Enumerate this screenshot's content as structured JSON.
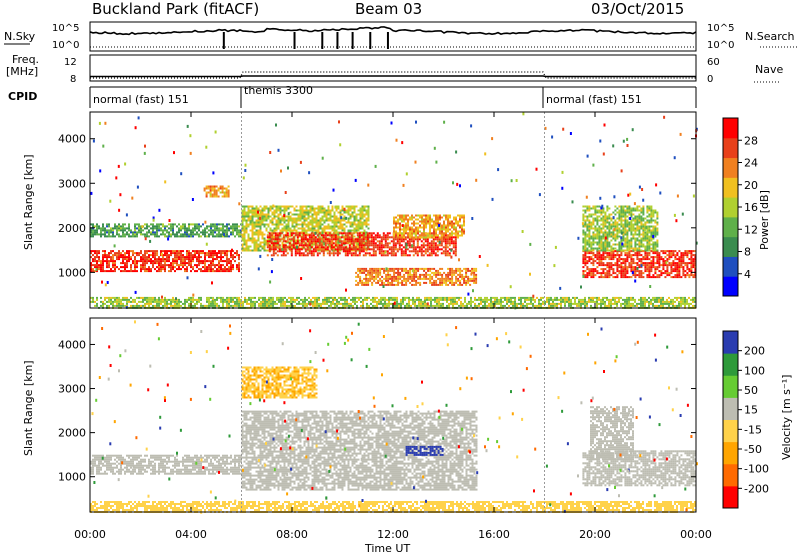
{
  "header": {
    "station": "Buckland Park (fitACF)",
    "beam": "Beam 03",
    "date": "03/Oct/2015"
  },
  "strip": {
    "nsky_label": "N.Sky",
    "nsky_ticks": [
      "10^5",
      "10^0"
    ],
    "nsearch_label": "N.Search",
    "freq_label_1": "Freq.",
    "freq_label_2": "[MHz]",
    "freq_ticks": [
      "12",
      "8"
    ],
    "nave_label": "Nave",
    "nave_ticks": [
      "60",
      "0"
    ],
    "cpid_label": "CPID",
    "modes": [
      {
        "name": "normal (fast) 151",
        "start_hour": 0,
        "end_hour": 6
      },
      {
        "name": "themis 3300",
        "start_hour": 6,
        "end_hour": 18
      },
      {
        "name": "normal (fast) 151",
        "start_hour": 18,
        "end_hour": 24
      }
    ]
  },
  "colors": {
    "power_scale": [
      "#0000ff",
      "#1f4fbf",
      "#3a8c4f",
      "#5fb04a",
      "#b0d030",
      "#f0c020",
      "#f08020",
      "#e8401a",
      "#ff0000"
    ],
    "velocity_scale": [
      "#ff0000",
      "#ff6a00",
      "#ffa500",
      "#ffd24a",
      "#bdbdb2",
      "#66cc33",
      "#2e9a3a",
      "#2a3cb0"
    ],
    "ground_scatter": "#bdbdb2"
  },
  "chart_data": [
    {
      "type": "heatmap",
      "panel": "power",
      "xlabel": "",
      "ylabel": "Slant Range [km]",
      "xlim": [
        0,
        24
      ],
      "ylim": [
        200,
        4600
      ],
      "yticks": [
        "1000",
        "2000",
        "3000",
        "4000"
      ],
      "colorbar": {
        "label": "Power [dB]",
        "ticks": [
          "4",
          "8",
          "12",
          "16",
          "20",
          "24",
          "28"
        ],
        "range": [
          0,
          30
        ]
      },
      "regions": [
        {
          "t0": 0.0,
          "t1": 5.9,
          "r0": 1050,
          "r1": 1500,
          "level": 26
        },
        {
          "t0": 0.0,
          "t1": 6.0,
          "r0": 1800,
          "r1": 2100,
          "level": 10
        },
        {
          "t0": 4.5,
          "t1": 5.5,
          "r0": 2700,
          "r1": 2950,
          "level": 20
        },
        {
          "t0": 6.0,
          "t1": 11.0,
          "r0": 1500,
          "r1": 2500,
          "level": 16
        },
        {
          "t0": 7.0,
          "t1": 14.5,
          "r0": 1400,
          "r1": 1900,
          "level": 26
        },
        {
          "t0": 10.5,
          "t1": 15.3,
          "r0": 700,
          "r1": 1100,
          "level": 22
        },
        {
          "t0": 12.0,
          "t1": 14.8,
          "r0": 1800,
          "r1": 2300,
          "level": 20
        },
        {
          "t0": 19.5,
          "t1": 24.0,
          "r0": 900,
          "r1": 1500,
          "level": 26
        },
        {
          "t0": 19.5,
          "t1": 22.5,
          "r0": 1500,
          "r1": 2500,
          "level": 14
        },
        {
          "t0": 0.0,
          "t1": 24.0,
          "r0": 200,
          "r1": 450,
          "level": 14
        }
      ]
    },
    {
      "type": "heatmap",
      "panel": "velocity",
      "xlabel": "Time UT",
      "ylabel": "Slant Range [km]",
      "xlim": [
        0,
        24
      ],
      "ylim": [
        200,
        4600
      ],
      "xticks": [
        "00:00",
        "04:00",
        "08:00",
        "12:00",
        "16:00",
        "20:00",
        "00:00"
      ],
      "yticks": [
        "1000",
        "2000",
        "3000",
        "4000"
      ],
      "colorbar": {
        "label": "Velocity [m s⁻¹]",
        "ticks": [
          "-200",
          "-100",
          "-50",
          "-15",
          "15",
          "50",
          "100",
          "200"
        ],
        "range": [
          -250,
          250
        ]
      },
      "regions": [
        {
          "t0": 0.0,
          "t1": 6.0,
          "r0": 1050,
          "r1": 1500,
          "level": 0
        },
        {
          "t0": 6.0,
          "t1": 15.3,
          "r0": 700,
          "r1": 2500,
          "level": 0
        },
        {
          "t0": 12.5,
          "t1": 14.0,
          "r0": 1500,
          "r1": 1700,
          "level": 220
        },
        {
          "t0": 19.5,
          "t1": 24.0,
          "r0": 800,
          "r1": 1600,
          "level": 0
        },
        {
          "t0": 19.8,
          "t1": 21.5,
          "r0": 1400,
          "r1": 2600,
          "level": 30
        },
        {
          "t0": 6.0,
          "t1": 9.0,
          "r0": 2800,
          "r1": 3500,
          "level": -60
        },
        {
          "t0": 0.0,
          "t1": 24.0,
          "r0": 200,
          "r1": 450,
          "level": -40
        }
      ]
    }
  ]
}
